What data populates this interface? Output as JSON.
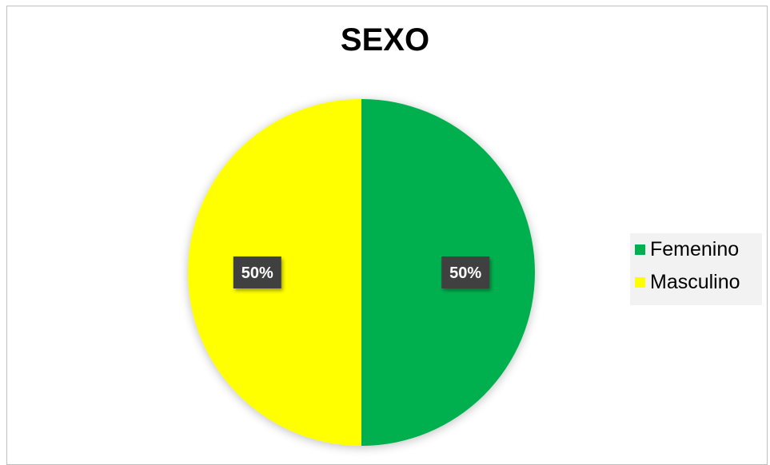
{
  "chart_data": {
    "type": "pie",
    "title": "SEXO",
    "categories": [
      "Femenino",
      "Masculino"
    ],
    "values": [
      50,
      50
    ],
    "labels": [
      "50%",
      "50%"
    ],
    "colors": [
      "#00b050",
      "#ffff00"
    ],
    "legend_position": "right"
  }
}
